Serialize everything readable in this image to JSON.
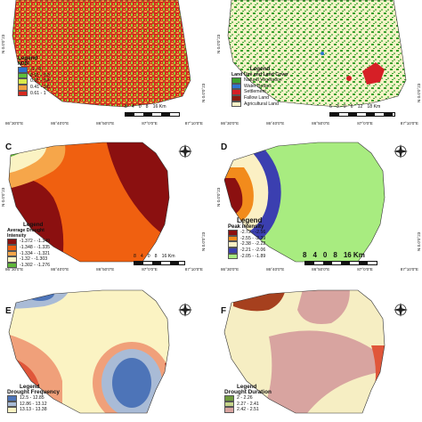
{
  "panels": {
    "A": {
      "legend_title": "Legend",
      "legend_subtitle": "NDDI",
      "classes": [
        {
          "label": "-1 - 0",
          "color": "#2b6fd1"
        },
        {
          "label": "0.01 - 0.3",
          "color": "#5fbf3a"
        },
        {
          "label": "0.31 - 0.4",
          "color": "#d8ea4a"
        },
        {
          "label": "0.41 - 0.6",
          "color": "#f0a040"
        },
        {
          "label": "0.61 - 1",
          "color": "#d7281e"
        }
      ],
      "scale": [
        "8",
        "4",
        "0",
        "8",
        "16 Km"
      ],
      "lon_ticks": [
        "86°30'0\"E",
        "86°40'0\"E",
        "86°50'0\"E",
        "87°0'0\"E",
        "87°10'0\"E"
      ],
      "lat_ticks": [
        "N 0.0'0°23",
        "N 0.0'0°23"
      ]
    },
    "B": {
      "legend_title": "Legend",
      "legend_subtitle": "Land Use and Land Cover",
      "classes": [
        {
          "label": "Natural Vegetation",
          "color": "#3aa12e"
        },
        {
          "label": "Water Bodies",
          "color": "#2f76d2"
        },
        {
          "label": "Settlement",
          "color": "#d61f26"
        },
        {
          "label": "Fallow Land",
          "color": "#8b1a10"
        },
        {
          "label": "Agricultural Land",
          "color": "#f6f2c7"
        }
      ],
      "scale": [
        "6",
        "3",
        "0",
        "6",
        "12",
        "18 Km"
      ],
      "lon_ticks": [
        "86°30'0\"E",
        "86°40'0\"E",
        "86°50'0\"E",
        "87°0'0\"E",
        "87°10'0\"E"
      ],
      "lat_ticks": [
        "N 0.0'0°23",
        "N 0.0'0°23"
      ]
    },
    "C": {
      "label": "C",
      "legend_title": "Legend",
      "legend_subtitle": "Average Drought Intensity",
      "classes": [
        {
          "label": "-1.372 - -1.349",
          "color": "#8b1010"
        },
        {
          "label": "-1.348 - -1.335",
          "color": "#f06010"
        },
        {
          "label": "-1.334 - -1.321",
          "color": "#f6a64a"
        },
        {
          "label": "-1.32 - -1.303",
          "color": "#fbf3c3"
        },
        {
          "label": "-1.302 - -1.276",
          "color": "#5fb838"
        }
      ],
      "scale": [
        "8",
        "4",
        "0",
        "8",
        "16 Km"
      ],
      "lon_ticks": [
        "86°30'0\"E",
        "86°40'0\"E",
        "86°50'0\"E",
        "87°0'0\"E",
        "87°10'0\"E"
      ],
      "lat_ticks": [
        "N 0.0'0°23",
        "N 0.0'0°23"
      ]
    },
    "D": {
      "label": "D",
      "legend_title": "Legend",
      "legend_subtitle": "Peak intensity",
      "classes": [
        {
          "label": "-2.72 - -2.56",
          "color": "#8b1010"
        },
        {
          "label": "-2.55 - -2.39",
          "color": "#f28b1c"
        },
        {
          "label": "-2.38 - -2.22",
          "color": "#fbf0c4"
        },
        {
          "label": "-2.21 - -2.06",
          "color": "#3b3fb0"
        },
        {
          "label": "-2.05 - -1.89",
          "color": "#a8ec80"
        }
      ],
      "scale": [
        "8",
        "4",
        "0",
        "8",
        "16 Km"
      ],
      "lon_ticks": [
        "86°30'0\"E",
        "86°40'0\"E",
        "86°50'0\"E",
        "87°0'0\"E",
        "87°10'0\"E"
      ],
      "lat_ticks": [
        "N 0.0'0°23",
        "N 0.0'0°23"
      ]
    },
    "E": {
      "label": "E",
      "legend_title": "Legend",
      "legend_subtitle": "Drought Frequency",
      "classes": [
        {
          "label": "12.5 - 12.85",
          "color": "#4d74b8"
        },
        {
          "label": "12.86 - 13.12",
          "color": "#a9bbd6"
        },
        {
          "label": "13.13 - 13.38",
          "color": "#fbf3c3"
        }
      ]
    },
    "F": {
      "label": "F",
      "legend_title": "Legend",
      "legend_subtitle": "Drought Duration",
      "classes": [
        {
          "label": "2 - 2.26",
          "color": "#6f9a3c"
        },
        {
          "label": "2.27 - 2.41",
          "color": "#c5d48a"
        },
        {
          "label": "2.42 - 2.51",
          "color": "#d8a4a0"
        }
      ]
    }
  }
}
